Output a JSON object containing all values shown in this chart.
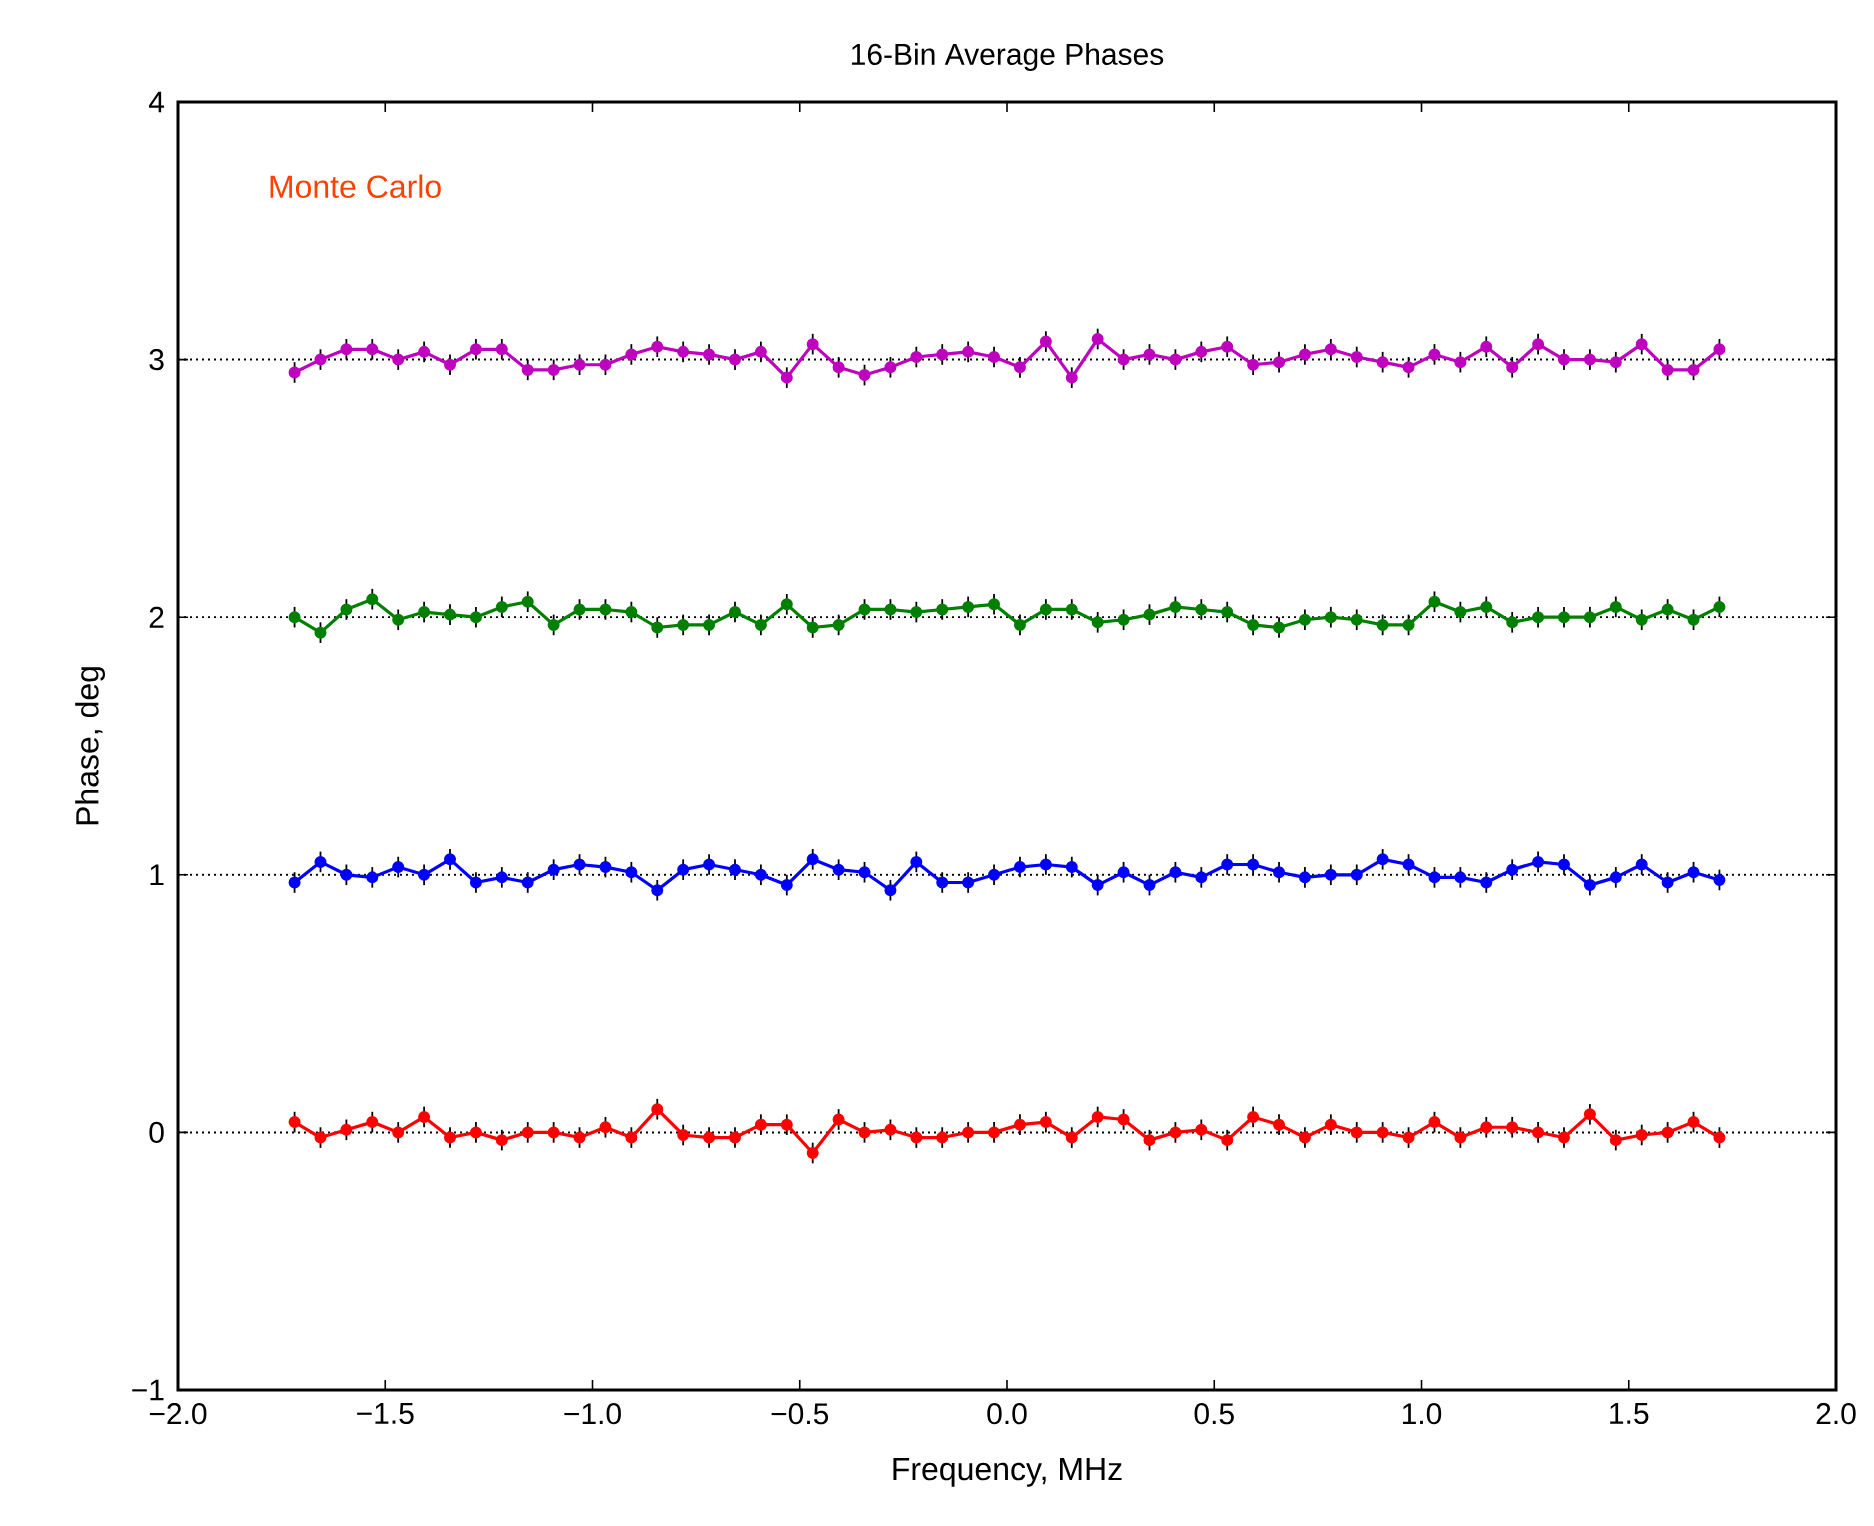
{
  "chart_data": {
    "type": "line",
    "title": "16-Bin Average Phases",
    "xlabel": "Frequency, MHz",
    "ylabel": "Phase, deg",
    "annotations": [
      "Monte Carlo"
    ],
    "marker": "circle",
    "line_style": "solid",
    "x": [
      -1.71875,
      -1.65625,
      -1.59375,
      -1.53125,
      -1.46875,
      -1.40625,
      -1.34375,
      -1.28125,
      -1.21875,
      -1.15625,
      -1.09375,
      -1.03125,
      -0.96875,
      -0.90625,
      -0.84375,
      -0.78125,
      -0.71875,
      -0.65625,
      -0.59375,
      -0.53125,
      -0.46875,
      -0.40625,
      -0.34375,
      -0.28125,
      -0.21875,
      -0.15625,
      -0.09375,
      -0.03125,
      0.03125,
      0.09375,
      0.15625,
      0.21875,
      0.28125,
      0.34375,
      0.40625,
      0.46875,
      0.53125,
      0.59375,
      0.65625,
      0.71875,
      0.78125,
      0.84375,
      0.90625,
      0.96875,
      1.03125,
      1.09375,
      1.15625,
      1.21875,
      1.28125,
      1.34375,
      1.40625,
      1.46875,
      1.53125,
      1.59375,
      1.65625,
      1.71875
    ],
    "xlim": [
      -2,
      2
    ],
    "xticks": [
      {
        "value": -2,
        "label": "−2.0"
      },
      {
        "value": -1.5,
        "label": "−1.5"
      },
      {
        "value": -1,
        "label": "−1.0"
      },
      {
        "value": -0.5,
        "label": "−0.5"
      },
      {
        "value": 0,
        "label": "0.0"
      },
      {
        "value": 0.5,
        "label": "0.5"
      },
      {
        "value": 1,
        "label": "1.0"
      },
      {
        "value": 1.5,
        "label": "1.5"
      },
      {
        "value": 2,
        "label": "2.0"
      }
    ],
    "ylim": [
      -1,
      4
    ],
    "yticks": [
      {
        "value": -1,
        "label": "−1"
      },
      0,
      1,
      2,
      3,
      4
    ],
    "ref_lines": [
      {
        "axis": "y",
        "value": 0,
        "color": "#000000",
        "line_style": "dotted"
      },
      {
        "axis": "y",
        "value": 1,
        "color": "#000000",
        "line_style": "dotted"
      },
      {
        "axis": "y",
        "value": 2,
        "color": "#000000",
        "line_style": "dotted"
      },
      {
        "axis": "y",
        "value": 3,
        "color": "#000000",
        "line_style": "dotted"
      }
    ],
    "series": [
      {
        "color": "#ff0000",
        "values": [
          0.04,
          -0.02,
          0.01,
          0.04,
          0.0,
          0.06,
          -0.02,
          0.0,
          -0.03,
          0.0,
          0.0,
          -0.02,
          0.02,
          -0.02,
          0.09,
          -0.01,
          -0.02,
          -0.02,
          0.03,
          0.03,
          -0.08,
          0.05,
          0.0,
          0.01,
          -0.02,
          -0.02,
          0.0,
          0.0,
          0.03,
          0.04,
          -0.02,
          0.06,
          0.05,
          -0.03,
          0.0,
          0.01,
          -0.03,
          0.06,
          0.03,
          -0.02,
          0.03,
          0.0,
          0.0,
          -0.02,
          0.04,
          -0.02,
          0.02,
          0.02,
          0.0,
          -0.02,
          0.07,
          -0.03,
          -0.01,
          0.0,
          0.04,
          -0.02
        ],
        "errors": [
          0.04,
          0.04,
          0.04,
          0.04,
          0.04,
          0.04,
          0.04,
          0.04,
          0.04,
          0.04,
          0.04,
          0.04,
          0.04,
          0.04,
          0.04,
          0.04,
          0.04,
          0.04,
          0.04,
          0.04,
          0.04,
          0.04,
          0.04,
          0.04,
          0.04,
          0.04,
          0.04,
          0.04,
          0.04,
          0.04,
          0.04,
          0.04,
          0.04,
          0.04,
          0.04,
          0.04,
          0.04,
          0.04,
          0.04,
          0.04,
          0.04,
          0.04,
          0.04,
          0.04,
          0.04,
          0.04,
          0.04,
          0.04,
          0.04,
          0.04,
          0.04,
          0.04,
          0.04,
          0.04,
          0.04,
          0.04
        ]
      },
      {
        "color": "#0000ff",
        "values": [
          0.97,
          1.05,
          1.0,
          0.99,
          1.03,
          1.0,
          1.06,
          0.97,
          0.99,
          0.97,
          1.02,
          1.04,
          1.03,
          1.01,
          0.94,
          1.02,
          1.04,
          1.02,
          1.0,
          0.96,
          1.06,
          1.02,
          1.01,
          0.94,
          1.05,
          0.97,
          0.97,
          1.0,
          1.03,
          1.04,
          1.03,
          0.96,
          1.01,
          0.96,
          1.01,
          0.99,
          1.04,
          1.04,
          1.01,
          0.99,
          1.0,
          1.0,
          1.06,
          1.04,
          0.99,
          0.99,
          0.97,
          1.02,
          1.05,
          1.04,
          0.96,
          0.99,
          1.04,
          0.97,
          1.01,
          0.98
        ],
        "errors": [
          0.04,
          0.04,
          0.04,
          0.04,
          0.04,
          0.04,
          0.04,
          0.04,
          0.04,
          0.04,
          0.04,
          0.04,
          0.04,
          0.04,
          0.04,
          0.04,
          0.04,
          0.04,
          0.04,
          0.04,
          0.04,
          0.04,
          0.04,
          0.04,
          0.04,
          0.04,
          0.04,
          0.04,
          0.04,
          0.04,
          0.04,
          0.04,
          0.04,
          0.04,
          0.04,
          0.04,
          0.04,
          0.04,
          0.04,
          0.04,
          0.04,
          0.04,
          0.04,
          0.04,
          0.04,
          0.04,
          0.04,
          0.04,
          0.04,
          0.04,
          0.04,
          0.04,
          0.04,
          0.04,
          0.04,
          0.04
        ]
      },
      {
        "color": "#008000",
        "values": [
          2.0,
          1.94,
          2.03,
          2.07,
          1.99,
          2.02,
          2.01,
          2.0,
          2.04,
          2.06,
          1.97,
          2.03,
          2.03,
          2.02,
          1.96,
          1.97,
          1.97,
          2.02,
          1.97,
          2.05,
          1.96,
          1.97,
          2.03,
          2.03,
          2.02,
          2.03,
          2.04,
          2.05,
          1.97,
          2.03,
          2.03,
          1.98,
          1.99,
          2.01,
          2.04,
          2.03,
          2.02,
          1.97,
          1.96,
          1.99,
          2.0,
          1.99,
          1.97,
          1.97,
          2.06,
          2.02,
          2.04,
          1.98,
          2.0,
          2.0,
          2.0,
          2.04,
          1.99,
          2.03,
          1.99,
          2.04
        ],
        "errors": [
          0.04,
          0.04,
          0.04,
          0.04,
          0.04,
          0.04,
          0.04,
          0.04,
          0.04,
          0.04,
          0.04,
          0.04,
          0.04,
          0.04,
          0.04,
          0.04,
          0.04,
          0.04,
          0.04,
          0.04,
          0.04,
          0.04,
          0.04,
          0.04,
          0.04,
          0.04,
          0.04,
          0.04,
          0.04,
          0.04,
          0.04,
          0.04,
          0.04,
          0.04,
          0.04,
          0.04,
          0.04,
          0.04,
          0.04,
          0.04,
          0.04,
          0.04,
          0.04,
          0.04,
          0.04,
          0.04,
          0.04,
          0.04,
          0.04,
          0.04,
          0.04,
          0.04,
          0.04,
          0.04,
          0.04,
          0.04
        ]
      },
      {
        "color": "#bf00bf",
        "values": [
          2.95,
          3.0,
          3.04,
          3.04,
          3.0,
          3.03,
          2.98,
          3.04,
          3.04,
          2.96,
          2.96,
          2.98,
          2.98,
          3.02,
          3.05,
          3.03,
          3.02,
          3.0,
          3.03,
          2.93,
          3.06,
          2.97,
          2.94,
          2.97,
          3.01,
          3.02,
          3.03,
          3.01,
          2.97,
          3.07,
          2.93,
          3.08,
          3.0,
          3.02,
          3.0,
          3.03,
          3.05,
          2.98,
          2.99,
          3.02,
          3.04,
          3.01,
          2.99,
          2.97,
          3.02,
          2.99,
          3.05,
          2.97,
          3.06,
          3.0,
          3.0,
          2.99,
          3.06,
          2.96,
          2.96,
          3.04
        ],
        "errors": [
          0.04,
          0.04,
          0.04,
          0.04,
          0.04,
          0.04,
          0.04,
          0.04,
          0.04,
          0.04,
          0.04,
          0.04,
          0.04,
          0.04,
          0.04,
          0.04,
          0.04,
          0.04,
          0.04,
          0.04,
          0.04,
          0.04,
          0.04,
          0.04,
          0.04,
          0.04,
          0.04,
          0.04,
          0.04,
          0.04,
          0.04,
          0.04,
          0.04,
          0.04,
          0.04,
          0.04,
          0.04,
          0.04,
          0.04,
          0.04,
          0.04,
          0.04,
          0.04,
          0.04,
          0.04,
          0.04,
          0.04,
          0.04,
          0.04,
          0.04,
          0.04,
          0.04,
          0.04,
          0.04,
          0.04,
          0.04
        ]
      }
    ]
  }
}
